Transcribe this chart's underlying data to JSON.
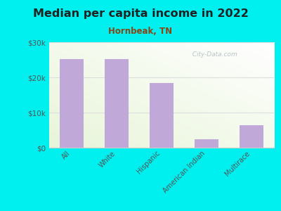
{
  "title": "Median per capita income in 2022",
  "subtitle": "Hornbeak, TN",
  "categories": [
    "All",
    "White",
    "Hispanic",
    "American Indian",
    "Multirace"
  ],
  "values": [
    25200,
    25200,
    18500,
    2500,
    6500
  ],
  "bar_color": "#c0a8d8",
  "background_color": "#00EFEF",
  "title_color": "#222222",
  "subtitle_color": "#8B4513",
  "tick_label_color": "#555555",
  "ytick_label_color": "#555555",
  "ylim": [
    0,
    30000
  ],
  "yticks": [
    0,
    10000,
    20000,
    30000
  ],
  "ytick_labels": [
    "$0",
    "$10k",
    "$20k",
    "$30k"
  ],
  "watermark": "  City-Data.com",
  "watermark_color": "#b0b8c0",
  "grid_color": "#dddddd",
  "bottom_spine_color": "#cccccc"
}
